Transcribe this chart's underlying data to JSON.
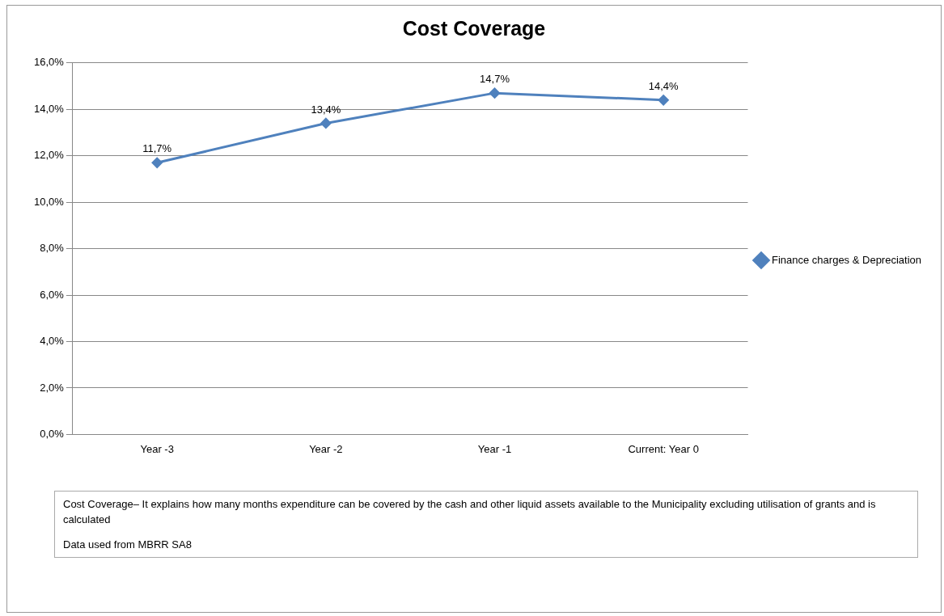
{
  "chart_data": {
    "type": "line",
    "title": "Cost Coverage",
    "categories": [
      "Year -3",
      "Year -2",
      "Year -1",
      "Current: Year 0"
    ],
    "series": [
      {
        "name": "Finance charges & Depreciation",
        "color": "#4f81bd",
        "values": [
          11.7,
          13.4,
          14.7,
          14.4
        ],
        "value_labels": [
          "11,7%",
          "13,4%",
          "14,7%",
          "14,4%"
        ]
      }
    ],
    "ylim": [
      0,
      16
    ],
    "yticks": [
      {
        "value": 0,
        "label": "0,0%"
      },
      {
        "value": 2,
        "label": "2,0%"
      },
      {
        "value": 4,
        "label": "4,0%"
      },
      {
        "value": 6,
        "label": "6,0%"
      },
      {
        "value": 8,
        "label": "8,0%"
      },
      {
        "value": 10,
        "label": "10,0%"
      },
      {
        "value": 12,
        "label": "12,0%"
      },
      {
        "value": 14,
        "label": "14,0%"
      },
      {
        "value": 16,
        "label": "16,0%"
      }
    ],
    "grid": "y",
    "legend": "right",
    "marker": "diamond",
    "line_style": "solid",
    "annotations": [
      "Cost Coverage– It explains how many months expenditure can be covered by the  cash and other liquid assets available to the Municipality excluding utilisation of grants and is calculated",
      "Data used from MBRR SA8"
    ]
  }
}
